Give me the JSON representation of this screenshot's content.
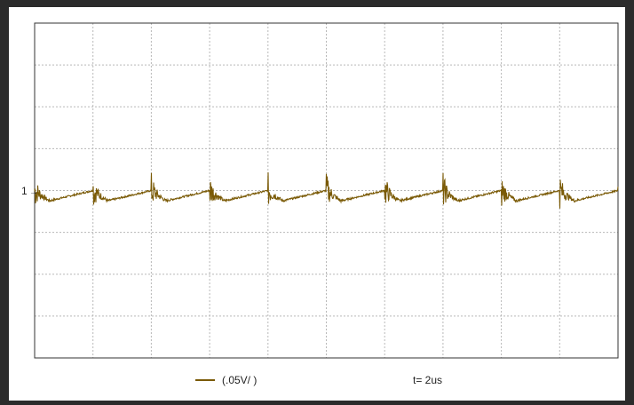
{
  "chart_data": {
    "type": "line",
    "title": "",
    "xlabel": "",
    "ylabel": "",
    "grid": true,
    "grid_divisions": {
      "x": 10,
      "y": 8
    },
    "channel_marker": "1",
    "legend": {
      "series_label": "(.05V/ )",
      "timebase_label": "t= 2us"
    },
    "colors": {
      "trace": "#7a5a06",
      "grid": "#b8b8b8",
      "axis": "#333333"
    },
    "series": [
      {
        "name": "(.05V/ )",
        "spike_times_div": [
          0.0,
          1.0,
          2.0,
          3.0,
          4.0,
          5.0,
          6.0,
          7.0,
          8.0,
          9.0,
          10.0
        ],
        "baseline_div": 0.0,
        "trough_div": -0.45,
        "spike_peak_div": 0.8,
        "noise_div": 0.15
      }
    ]
  }
}
